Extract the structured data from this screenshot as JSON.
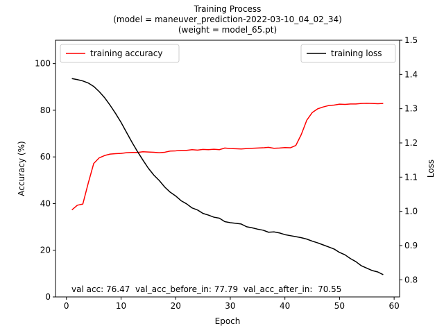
{
  "chart_data": {
    "type": "line",
    "title_lines": [
      "Training Process",
      "(model = maneuver_prediction-2022-03-10_04_02_34)",
      "(weight = model_65.pt)"
    ],
    "xlabel": "Epoch",
    "ylabel_left": "Accuracy (%)",
    "ylabel_right": "Loss",
    "xlim": [
      -2,
      61
    ],
    "ylim_left": [
      0,
      110
    ],
    "ylim_right": [
      0.75,
      1.5
    ],
    "xticks": [
      0,
      10,
      20,
      30,
      40,
      50,
      60
    ],
    "yticks_left": [
      0,
      20,
      40,
      60,
      80,
      100
    ],
    "yticks_right": [
      0.8,
      0.9,
      1.0,
      1.1,
      1.2,
      1.3,
      1.4,
      1.5
    ],
    "grid": false,
    "legend_left": {
      "placement": "top-left",
      "label": "training accuracy",
      "color": "#ff0000"
    },
    "legend_right": {
      "placement": "top-right",
      "label": "training loss",
      "color": "#000000"
    },
    "x": [
      1,
      2,
      3,
      4,
      5,
      6,
      7,
      8,
      9,
      10,
      11,
      12,
      13,
      14,
      15,
      16,
      17,
      18,
      19,
      20,
      21,
      22,
      23,
      24,
      25,
      26,
      27,
      28,
      29,
      30,
      31,
      32,
      33,
      34,
      35,
      36,
      37,
      38,
      39,
      40,
      41,
      42,
      43,
      44,
      45,
      46,
      47,
      48,
      49,
      50,
      51,
      52,
      53,
      54,
      55,
      56,
      57,
      58
    ],
    "series": [
      {
        "name": "training accuracy",
        "axis": "left",
        "color": "#ff0000",
        "values": [
          37.3,
          39.3,
          39.8,
          48.8,
          57.2,
          59.6,
          60.6,
          61.2,
          61.4,
          61.5,
          61.8,
          61.9,
          61.9,
          62.2,
          62.1,
          62.0,
          61.8,
          62.0,
          62.5,
          62.6,
          62.8,
          62.8,
          63.1,
          62.9,
          63.2,
          63.1,
          63.3,
          63.1,
          63.8,
          63.6,
          63.5,
          63.4,
          63.6,
          63.7,
          63.8,
          63.9,
          64.1,
          63.7,
          63.8,
          64.0,
          63.9,
          64.9,
          69.6,
          75.7,
          79.0,
          80.6,
          81.4,
          82.0,
          82.2,
          82.6,
          82.5,
          82.7,
          82.7,
          82.9,
          83.0,
          82.9,
          82.8,
          82.9
        ]
      },
      {
        "name": "training loss",
        "axis": "right",
        "color": "#000000",
        "values": [
          1.388,
          1.385,
          1.381,
          1.375,
          1.365,
          1.35,
          1.332,
          1.31,
          1.286,
          1.26,
          1.231,
          1.202,
          1.175,
          1.15,
          1.126,
          1.106,
          1.09,
          1.071,
          1.056,
          1.045,
          1.031,
          1.022,
          1.01,
          1.004,
          0.994,
          0.989,
          0.983,
          0.98,
          0.97,
          0.967,
          0.965,
          0.963,
          0.955,
          0.952,
          0.948,
          0.945,
          0.939,
          0.94,
          0.937,
          0.932,
          0.929,
          0.926,
          0.923,
          0.919,
          0.913,
          0.908,
          0.902,
          0.896,
          0.89,
          0.88,
          0.873,
          0.862,
          0.853,
          0.841,
          0.834,
          0.827,
          0.823,
          0.815
        ]
      }
    ],
    "annotation": "val acc: 76.47  val_acc_before_in: 77.79  val_acc_after_in:  70.55"
  }
}
